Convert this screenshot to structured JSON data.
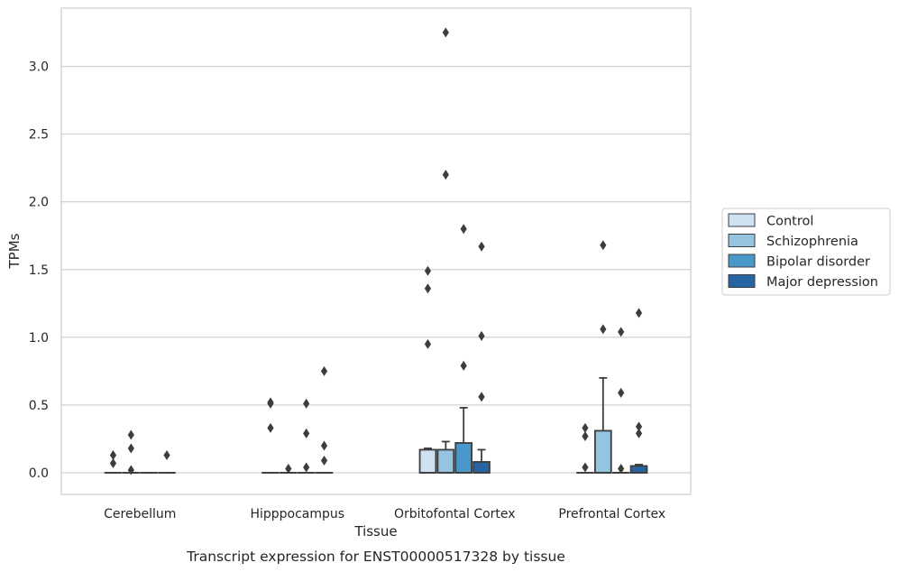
{
  "caption": "Transcript expression for ENST00000517328 by tissue",
  "chart_data": {
    "type": "box",
    "xlabel": "Tissue",
    "ylabel": "TPMs",
    "ylim": [
      -0.16,
      3.43
    ],
    "yticks": [
      0.0,
      0.5,
      1.0,
      1.5,
      2.0,
      2.5,
      3.0
    ],
    "ytick_labels": [
      "0.0",
      "0.5",
      "1.0",
      "1.5",
      "2.0",
      "2.5",
      "3.0"
    ],
    "grid": "horizontal",
    "legend_position": "right",
    "categories": [
      "Cerebellum",
      "Hipppocampus",
      "Orbitofontal Cortex",
      "Prefrontal Cortex"
    ],
    "series": [
      {
        "name": "Control",
        "color": "#d0e1f2",
        "boxes": [
          {
            "q1": 0,
            "median": 0,
            "q3": 0,
            "whisker_low": 0,
            "whisker_high": 0,
            "outliers": [
              0.07,
              0.13
            ]
          },
          {
            "q1": 0,
            "median": 0,
            "q3": 0,
            "whisker_low": 0,
            "whisker_high": 0,
            "outliers": [
              0.33,
              0.51,
              0.52
            ]
          },
          {
            "q1": 0,
            "median": 0,
            "q3": 0.17,
            "whisker_low": 0,
            "whisker_high": 0.18,
            "outliers": [
              0.95,
              1.36,
              1.49
            ]
          },
          {
            "q1": 0,
            "median": 0,
            "q3": 0,
            "whisker_low": 0,
            "whisker_high": 0,
            "outliers": [
              0.04,
              0.27,
              0.33
            ]
          }
        ]
      },
      {
        "name": "Schizophrenia",
        "color": "#94c4df",
        "boxes": [
          {
            "q1": 0,
            "median": 0,
            "q3": 0,
            "whisker_low": 0,
            "whisker_high": 0,
            "outliers": [
              0.02,
              0.18,
              0.28
            ]
          },
          {
            "q1": 0,
            "median": 0,
            "q3": 0,
            "whisker_low": 0,
            "whisker_high": 0,
            "outliers": [
              0.03
            ]
          },
          {
            "q1": 0,
            "median": 0,
            "q3": 0.17,
            "whisker_low": 0,
            "whisker_high": 0.23,
            "outliers": [
              2.2,
              3.25
            ]
          },
          {
            "q1": 0,
            "median": 0,
            "q3": 0.31,
            "whisker_low": 0,
            "whisker_high": 0.7,
            "outliers": [
              1.06,
              1.68
            ]
          }
        ]
      },
      {
        "name": "Bipolar disorder",
        "color": "#4a98c9",
        "boxes": [
          {
            "q1": 0,
            "median": 0,
            "q3": 0,
            "whisker_low": 0,
            "whisker_high": 0,
            "outliers": []
          },
          {
            "q1": 0,
            "median": 0,
            "q3": 0,
            "whisker_low": 0,
            "whisker_high": 0,
            "outliers": [
              0.04,
              0.29,
              0.51
            ]
          },
          {
            "q1": 0,
            "median": 0,
            "q3": 0.22,
            "whisker_low": 0,
            "whisker_high": 0.48,
            "outliers": [
              0.79,
              1.8
            ]
          },
          {
            "q1": 0,
            "median": 0,
            "q3": 0,
            "whisker_low": 0,
            "whisker_high": 0,
            "outliers": [
              0.03,
              0.59,
              1.04
            ]
          }
        ]
      },
      {
        "name": "Major depression",
        "color": "#2764a3",
        "boxes": [
          {
            "q1": 0,
            "median": 0,
            "q3": 0,
            "whisker_low": 0,
            "whisker_high": 0,
            "outliers": [
              0.13
            ]
          },
          {
            "q1": 0,
            "median": 0,
            "q3": 0,
            "whisker_low": 0,
            "whisker_high": 0,
            "outliers": [
              0.09,
              0.2,
              0.75
            ]
          },
          {
            "q1": 0,
            "median": 0,
            "q3": 0.08,
            "whisker_low": 0,
            "whisker_high": 0.17,
            "outliers": [
              0.56,
              1.01,
              1.67
            ]
          },
          {
            "q1": 0,
            "median": 0,
            "q3": 0.05,
            "whisker_low": 0,
            "whisker_high": 0.06,
            "outliers": [
              0.29,
              0.34,
              1.18
            ]
          }
        ]
      }
    ]
  }
}
